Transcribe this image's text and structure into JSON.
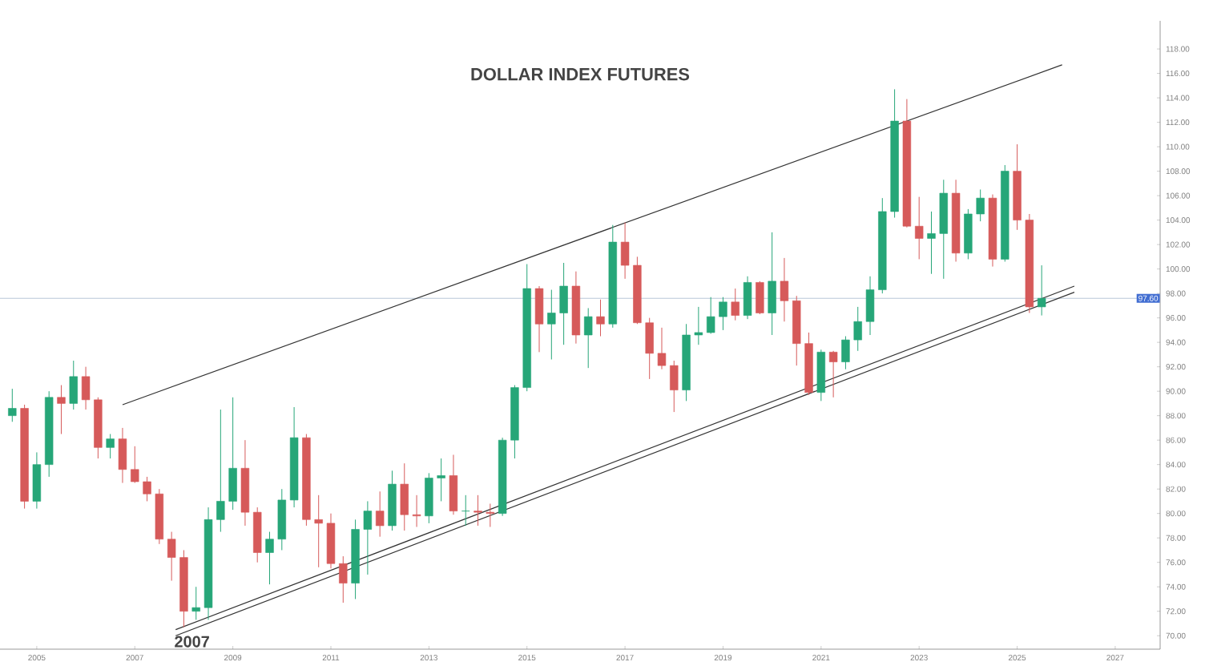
{
  "chart_data": {
    "type": "candlestick",
    "title": "DOLLAR INDEX FUTURES",
    "x": [
      "2004-07",
      "2004-10",
      "2005-01",
      "2005-04",
      "2005-07",
      "2005-10",
      "2006-01",
      "2006-04",
      "2006-07",
      "2006-10",
      "2007-01",
      "2007-04",
      "2007-07",
      "2007-10",
      "2008-01",
      "2008-04",
      "2008-07",
      "2008-10",
      "2009-01",
      "2009-04",
      "2009-07",
      "2009-10",
      "2010-01",
      "2010-04",
      "2010-07",
      "2010-10",
      "2011-01",
      "2011-04",
      "2011-07",
      "2011-10",
      "2012-01",
      "2012-04",
      "2012-07",
      "2012-10",
      "2013-01",
      "2013-04",
      "2013-07",
      "2013-10",
      "2014-01",
      "2014-04",
      "2014-07",
      "2014-10",
      "2015-01",
      "2015-04",
      "2015-07",
      "2015-10",
      "2016-01",
      "2016-04",
      "2016-07",
      "2016-10",
      "2017-01",
      "2017-04",
      "2017-07",
      "2017-10",
      "2018-01",
      "2018-04",
      "2018-07",
      "2018-10",
      "2019-01",
      "2019-04",
      "2019-07",
      "2019-10",
      "2020-01",
      "2020-04",
      "2020-07",
      "2020-10",
      "2021-01",
      "2021-04",
      "2021-07",
      "2021-10",
      "2022-01",
      "2022-04",
      "2022-07",
      "2022-10",
      "2023-01",
      "2023-04",
      "2023-07",
      "2023-10",
      "2024-01",
      "2024-04",
      "2024-07",
      "2024-10",
      "2025-01",
      "2025-04",
      "2025-07"
    ],
    "ohlc": [
      [
        88.0,
        90.2,
        87.5,
        88.6
      ],
      [
        88.6,
        88.9,
        80.4,
        81.0
      ],
      [
        81.0,
        85.0,
        80.4,
        84.0
      ],
      [
        84.0,
        90.0,
        83.0,
        89.5
      ],
      [
        89.5,
        90.5,
        86.5,
        89.0
      ],
      [
        89.0,
        92.5,
        88.5,
        91.2
      ],
      [
        91.2,
        92.0,
        88.5,
        89.3
      ],
      [
        89.3,
        89.5,
        84.5,
        85.4
      ],
      [
        85.4,
        86.5,
        84.5,
        86.1
      ],
      [
        86.1,
        87.0,
        82.5,
        83.6
      ],
      [
        83.6,
        85.5,
        82.5,
        82.6
      ],
      [
        82.6,
        83.0,
        81.0,
        81.6
      ],
      [
        81.6,
        82.0,
        77.5,
        77.9
      ],
      [
        77.9,
        78.5,
        74.5,
        76.4
      ],
      [
        76.4,
        77.0,
        70.7,
        72.0
      ],
      [
        72.0,
        74.0,
        71.3,
        72.3
      ],
      [
        72.3,
        80.5,
        71.3,
        79.5
      ],
      [
        79.5,
        88.5,
        78.5,
        81.0
      ],
      [
        81.0,
        89.5,
        80.3,
        83.7
      ],
      [
        83.7,
        86.0,
        79.0,
        80.1
      ],
      [
        80.1,
        80.5,
        76.0,
        76.8
      ],
      [
        76.8,
        78.5,
        74.2,
        77.9
      ],
      [
        77.9,
        82.0,
        77.0,
        81.1
      ],
      [
        81.1,
        88.7,
        80.5,
        86.2
      ],
      [
        86.2,
        86.5,
        79.0,
        79.5
      ],
      [
        79.5,
        81.5,
        75.6,
        79.2
      ],
      [
        79.2,
        80.0,
        75.5,
        75.9
      ],
      [
        75.9,
        76.5,
        72.7,
        74.3
      ],
      [
        74.3,
        79.5,
        73.0,
        78.7
      ],
      [
        78.7,
        81.0,
        75.0,
        80.2
      ],
      [
        80.2,
        81.8,
        78.1,
        79.0
      ],
      [
        79.0,
        83.5,
        78.6,
        82.4
      ],
      [
        82.4,
        84.1,
        78.6,
        79.9
      ],
      [
        79.9,
        81.5,
        78.9,
        79.8
      ],
      [
        79.8,
        83.3,
        79.2,
        82.9
      ],
      [
        82.9,
        84.5,
        81.0,
        83.1
      ],
      [
        83.1,
        84.8,
        79.9,
        80.2
      ],
      [
        80.2,
        81.5,
        79.0,
        80.2
      ],
      [
        80.2,
        81.5,
        79.0,
        80.1
      ],
      [
        80.1,
        80.8,
        78.9,
        80.0
      ],
      [
        80.0,
        86.2,
        79.8,
        86.0
      ],
      [
        86.0,
        90.5,
        84.5,
        90.3
      ],
      [
        90.3,
        100.4,
        90.0,
        98.4
      ],
      [
        98.4,
        98.6,
        93.2,
        95.5
      ],
      [
        95.5,
        98.3,
        92.6,
        96.4
      ],
      [
        96.4,
        100.5,
        93.8,
        98.6
      ],
      [
        98.6,
        99.8,
        93.9,
        94.6
      ],
      [
        94.6,
        96.8,
        91.9,
        96.1
      ],
      [
        96.1,
        97.5,
        94.5,
        95.5
      ],
      [
        95.5,
        103.6,
        95.2,
        102.2
      ],
      [
        102.2,
        103.8,
        99.2,
        100.3
      ],
      [
        100.3,
        101.0,
        95.5,
        95.6
      ],
      [
        95.6,
        96.0,
        91.0,
        93.1
      ],
      [
        93.1,
        95.2,
        91.8,
        92.1
      ],
      [
        92.1,
        92.5,
        88.3,
        90.1
      ],
      [
        90.1,
        95.5,
        89.2,
        94.6
      ],
      [
        94.6,
        96.9,
        93.8,
        94.8
      ],
      [
        94.8,
        97.7,
        94.7,
        96.1
      ],
      [
        96.1,
        97.7,
        95.0,
        97.3
      ],
      [
        97.3,
        98.4,
        95.8,
        96.2
      ],
      [
        96.2,
        99.4,
        95.9,
        98.9
      ],
      [
        98.9,
        99.0,
        96.3,
        96.4
      ],
      [
        96.4,
        103.0,
        94.6,
        99.0
      ],
      [
        99.0,
        100.9,
        95.7,
        97.4
      ],
      [
        97.4,
        97.8,
        92.1,
        93.9
      ],
      [
        93.9,
        94.8,
        89.7,
        89.9
      ],
      [
        89.9,
        93.4,
        89.2,
        93.2
      ],
      [
        93.2,
        93.3,
        89.5,
        92.4
      ],
      [
        92.4,
        94.5,
        91.8,
        94.2
      ],
      [
        94.2,
        96.9,
        93.3,
        95.7
      ],
      [
        95.7,
        99.4,
        94.6,
        98.3
      ],
      [
        98.3,
        105.8,
        98.0,
        104.7
      ],
      [
        104.7,
        114.7,
        104.2,
        112.1
      ],
      [
        112.1,
        113.9,
        103.4,
        103.5
      ],
      [
        103.5,
        105.9,
        100.8,
        102.5
      ],
      [
        102.5,
        104.7,
        99.6,
        102.9
      ],
      [
        102.9,
        107.3,
        99.2,
        106.2
      ],
      [
        106.2,
        107.3,
        100.6,
        101.3
      ],
      [
        101.3,
        104.9,
        100.8,
        104.5
      ],
      [
        104.5,
        106.5,
        103.9,
        105.8
      ],
      [
        105.8,
        106.1,
        100.2,
        100.8
      ],
      [
        100.8,
        108.5,
        100.6,
        108.0
      ],
      [
        108.0,
        110.2,
        103.2,
        104.0
      ],
      [
        104.0,
        104.5,
        96.4,
        96.9
      ],
      [
        96.9,
        100.3,
        96.2,
        97.6
      ]
    ],
    "series": [
      {
        "type": "line",
        "x": [
          "2006-10",
          "2025-12"
        ],
        "values": [
          88.9,
          116.7
        ],
        "color": "#333333"
      },
      {
        "type": "line",
        "x": [
          "2007-11",
          "2026-03"
        ],
        "values": [
          70.0,
          98.1
        ],
        "color": "#333333"
      },
      {
        "type": "line",
        "x": [
          "2007-11",
          "2026-03"
        ],
        "values": [
          70.5,
          98.6
        ],
        "color": "#333333"
      }
    ],
    "xlim": [
      "2004-04",
      "2027-12"
    ],
    "ylim": [
      68.9,
      120.3
    ],
    "xticks": [
      "2005",
      "2007",
      "2009",
      "2011",
      "2013",
      "2015",
      "2017",
      "2019",
      "2021",
      "2023",
      "2025",
      "2027"
    ],
    "yticks": [
      {
        "value": 70,
        "label": "70.00"
      },
      {
        "value": 72,
        "label": "72.00"
      },
      {
        "value": 74,
        "label": "74.00"
      },
      {
        "value": 76,
        "label": "76.00"
      },
      {
        "value": 78,
        "label": "78.00"
      },
      {
        "value": 80,
        "label": "80.00"
      },
      {
        "value": 82,
        "label": "82.00"
      },
      {
        "value": 84,
        "label": "84.00"
      },
      {
        "value": 86,
        "label": "86.00"
      },
      {
        "value": 88,
        "label": "88.00"
      },
      {
        "value": 90,
        "label": "90.00"
      },
      {
        "value": 92,
        "label": "92.00"
      },
      {
        "value": 94,
        "label": "94.00"
      },
      {
        "value": 96,
        "label": "96.00"
      },
      {
        "value": 98,
        "label": "98.00"
      },
      {
        "value": 100,
        "label": "100.00"
      },
      {
        "value": 102,
        "label": "102.00"
      },
      {
        "value": 104,
        "label": "104.00"
      },
      {
        "value": 106,
        "label": "106.00"
      },
      {
        "value": 108,
        "label": "108.00"
      },
      {
        "value": 110,
        "label": "110.00"
      },
      {
        "value": 112,
        "label": "112.00"
      },
      {
        "value": 114,
        "label": "114.00"
      },
      {
        "value": 116,
        "label": "116.00"
      },
      {
        "value": 118,
        "label": "118.00"
      }
    ],
    "ref_lines": [
      {
        "axis": "y",
        "value": 97.6,
        "label": "97.60",
        "color": "#b8c8d8"
      }
    ],
    "annotations": [
      {
        "text": "2007",
        "x": "2008-03",
        "y": 70.7
      }
    ]
  }
}
